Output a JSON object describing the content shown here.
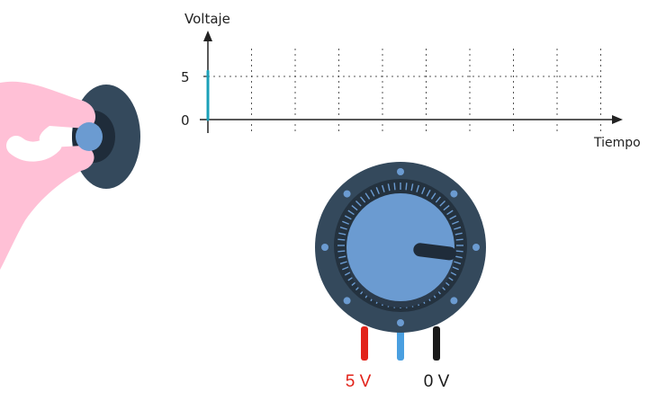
{
  "chart": {
    "y_axis_label": "Voltaje",
    "x_axis_label": "Tiempo",
    "y_ticks": [
      "5",
      "0"
    ],
    "reference_level": 5
  },
  "chart_data": {
    "type": "line",
    "ylabel": "Voltaje",
    "xlabel": "Tiempo",
    "ylim": [
      0,
      5.5
    ],
    "yticks": [
      0,
      5
    ],
    "grid": true,
    "series": [
      {
        "x": [
          0,
          0
        ],
        "y": [
          0,
          5.6
        ]
      }
    ]
  },
  "knob": {
    "position_fraction": 0.86
  },
  "pins": {
    "left": {
      "label": "5 V",
      "color": "#e2231a"
    },
    "middle": {
      "label": "",
      "color": "#4a9fe0"
    },
    "right": {
      "label": "0 V",
      "color": "#1a1a1a"
    }
  },
  "colors": {
    "signal": "#1ba0b8",
    "knob_outer": "#34495c",
    "knob_inner": "#6b9bd1",
    "knob_dark": "#1f2c3a",
    "hand": "#ffc0d6"
  }
}
